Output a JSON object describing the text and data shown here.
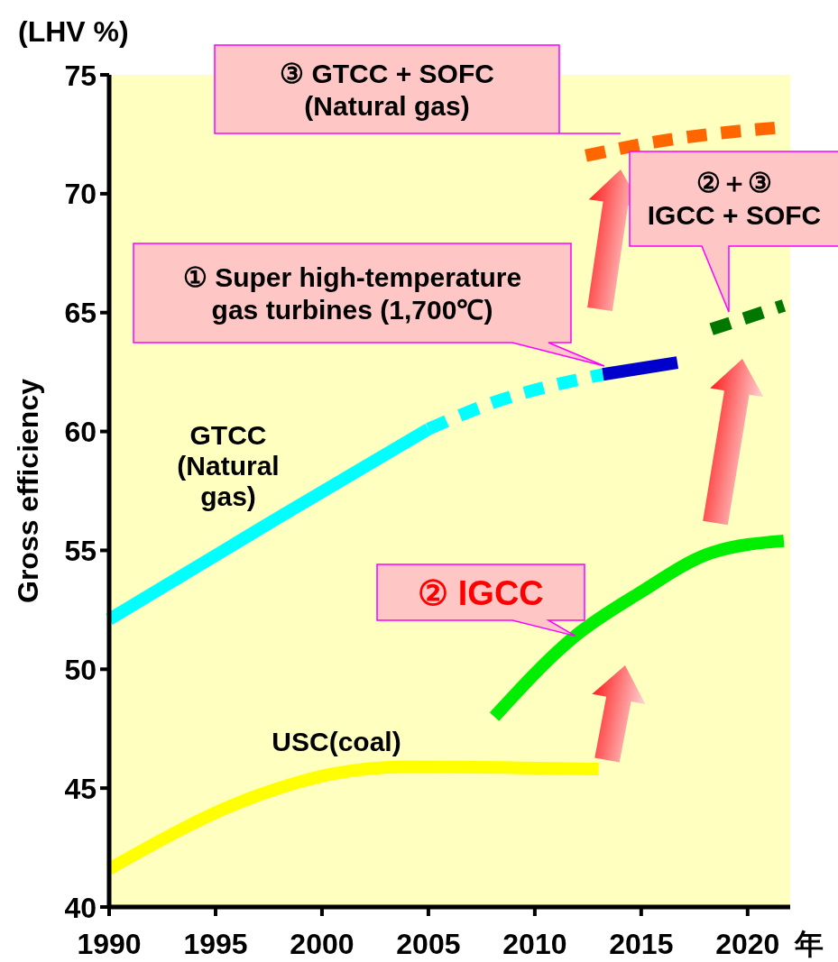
{
  "chart_data": {
    "type": "line",
    "xlabel": "年",
    "ylabel": "Gross efficiency",
    "xlim": [
      1990,
      2022
    ],
    "ylim": [
      40,
      75
    ],
    "xticks": [
      1990,
      1995,
      2000,
      2005,
      2010,
      2015,
      2020
    ],
    "yticks": [
      40,
      45,
      50,
      55,
      60,
      65,
      70,
      75
    ],
    "grid": false,
    "marker": "none",
    "series": [
      {
        "color": "#ffff00",
        "line_style": "solid",
        "x": [
          1990,
          1997,
          2000.5,
          2004,
          2013
        ],
        "values": [
          41.6,
          44.7,
          45.6,
          45.9,
          45.8
        ]
      },
      {
        "color": "#00ffff",
        "line_style": "solid",
        "x": [
          1990,
          1998,
          2005
        ],
        "values": [
          52.1,
          56.4,
          60.1
        ]
      },
      {
        "color": "#00ffff",
        "line_style": "dashed",
        "x": [
          2005,
          2008,
          2013.2
        ],
        "values": [
          60.1,
          61.2,
          62.4
        ]
      },
      {
        "color": "#0000cc",
        "line_style": "solid",
        "x": [
          2013.2,
          2016.7
        ],
        "values": [
          62.4,
          62.9
        ]
      },
      {
        "color": "#00ee00",
        "line_style": "solid",
        "x": [
          2008.1,
          2011.9,
          2014.9,
          2018.3,
          2021.7
        ],
        "values": [
          48.0,
          51.4,
          53.2,
          54.9,
          55.4
        ]
      },
      {
        "color": "#007700",
        "line_style": "dashed",
        "x": [
          2018.3,
          2021.7
        ],
        "values": [
          64.3,
          65.3
        ]
      },
      {
        "color": "#ff6600",
        "line_style": "dashed",
        "x": [
          2012.4,
          2015.8,
          2021.7
        ],
        "values": [
          71.6,
          72.2,
          72.8
        ]
      }
    ],
    "annotations": [
      "(LHV %)",
      "③ GTCC + SOFC\n(Natural gas)",
      "②＋③\nIGCC + SOFC",
      "① Super high-temperature\ngas turbines (1,700℃)",
      {
        "text": "② IGCC",
        "x": 2011.9,
        "y": 51.4
      },
      "GTCC\n(Natural\ngas)",
      "USC(coal)"
    ]
  }
}
